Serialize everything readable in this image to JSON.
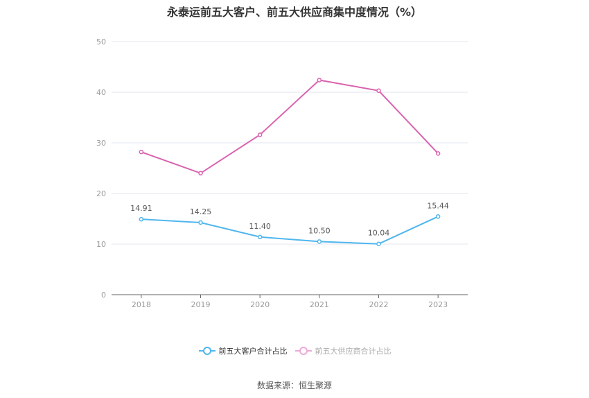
{
  "title": "永泰运前五大客户、前五大供应商集中度情况（%）",
  "source": "数据来源：恒生聚源",
  "colors": {
    "customers": "#4fb6ee",
    "suppliers": "#d963b0",
    "suppliers_legend": "#eeaad8",
    "grid": "#e3e6ef",
    "axis": "#666666"
  },
  "legend": [
    {
      "label": "前五大客户合计占比",
      "active": true
    },
    {
      "label": "前五大供应商合计占比",
      "active": false
    }
  ],
  "chart_data": {
    "type": "line",
    "title": "永泰运前五大客户、前五大供应商集中度情况（%）",
    "categories": [
      "2018",
      "2019",
      "2020",
      "2021",
      "2022",
      "2023"
    ],
    "series": [
      {
        "name": "前五大客户合计占比",
        "values": [
          14.91,
          14.25,
          11.4,
          10.5,
          10.04,
          15.44
        ],
        "labels_shown": true
      },
      {
        "name": "前五大供应商合计占比",
        "values": [
          28.2,
          24.0,
          31.6,
          42.4,
          40.3,
          27.9
        ],
        "labels_shown": false
      }
    ],
    "xlabel": "",
    "ylabel": "",
    "ylim": [
      0,
      50
    ],
    "yticks": [
      "0",
      "10",
      "20",
      "30",
      "40",
      "50"
    ],
    "grid": true,
    "legend_position": "bottom"
  }
}
